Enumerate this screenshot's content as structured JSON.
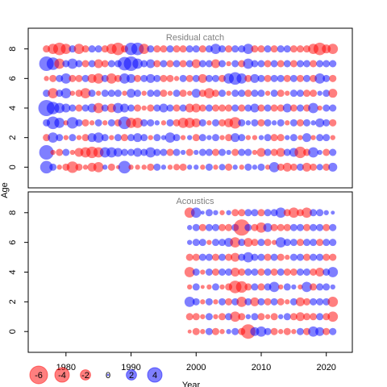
{
  "chart_data": [
    {
      "type": "bubble",
      "title": "Residual catch",
      "x": [
        1977,
        1978,
        1979,
        1980,
        1981,
        1982,
        1983,
        1984,
        1985,
        1986,
        1987,
        1988,
        1989,
        1990,
        1991,
        1992,
        1993,
        1994,
        1995,
        1996,
        1997,
        1998,
        1999,
        2000,
        2001,
        2002,
        2003,
        2004,
        2005,
        2006,
        2007,
        2008,
        2009,
        2010,
        2011,
        2012,
        2013,
        2014,
        2015,
        2016,
        2017,
        2018,
        2019,
        2020,
        2021
      ],
      "y": [
        0,
        1,
        2,
        3,
        4,
        5,
        6,
        7,
        8
      ],
      "values": [
        [
          3,
          1,
          -0.5,
          -1,
          -2.5,
          -1,
          -0.5,
          -1.5,
          -2,
          0.5,
          -1,
          -0.3,
          3,
          -0.5,
          -0.5,
          -0.5,
          -1,
          1,
          0.5,
          -0.5,
          -0.8,
          -1,
          0.5,
          0.5,
          -0.5,
          1,
          -0.5,
          0.8,
          -1,
          0.5,
          -0.5,
          1,
          0.5,
          1,
          -0.5,
          2,
          -1,
          -1.5,
          -1,
          1,
          -1.5,
          -1,
          0.8,
          -1,
          1.5
        ],
        [
          4,
          -0.5,
          -1,
          1,
          -0.5,
          -1.5,
          -2,
          -2.5,
          -2,
          2,
          2,
          1.5,
          1,
          1,
          1.5,
          1,
          2,
          1,
          1,
          -1,
          1,
          0.5,
          -1,
          0.5,
          1,
          1,
          -1,
          1,
          0.5,
          -1,
          1,
          1,
          -0.5,
          -1.5,
          1,
          -1,
          -1.5,
          1,
          1.5,
          -2.5,
          -1,
          2,
          0.5,
          -1,
          1
        ],
        [
          -1,
          2,
          1,
          -0.5,
          1,
          -0.5,
          -1,
          1.5,
          2,
          1,
          -0.5,
          1,
          -1,
          1,
          1.5,
          1,
          -0.5,
          1,
          0.5,
          2,
          1,
          -0.5,
          0.5,
          -1,
          1,
          0.5,
          1,
          -0.5,
          -1,
          1.5,
          1,
          -0.5,
          -0.5,
          0.5,
          1,
          -1,
          -1,
          0.5,
          1,
          -0.5,
          1.5,
          -0.5,
          1,
          1,
          -0.5
        ],
        [
          1,
          3,
          2,
          -0.5,
          2.5,
          1,
          -1,
          -0.5,
          1,
          -0.5,
          1,
          -1,
          3,
          -2,
          -2,
          1,
          1,
          0.5,
          -0.5,
          1,
          -1,
          -2,
          -2,
          -1.5,
          1,
          -0.5,
          1,
          -1,
          -1.5,
          -2.5,
          1,
          0.5,
          1,
          -1,
          1,
          0.5,
          1,
          -0.5,
          1,
          -1,
          1,
          0.5,
          1.5,
          1,
          -1
        ],
        [
          5,
          3,
          2,
          1.5,
          1,
          -1,
          1,
          1.5,
          -2,
          1,
          -1.5,
          2,
          1.5,
          1,
          -1,
          -0.5,
          -1,
          1,
          1.5,
          1,
          -1,
          1,
          -1.5,
          -1.5,
          -1,
          1,
          -1,
          -1,
          -1,
          1,
          -1,
          1,
          1.5,
          -1,
          1,
          -1,
          -1,
          1.5,
          -1,
          1,
          -1,
          2,
          -0.5,
          1,
          1
        ],
        [
          1,
          -2,
          1,
          2,
          -0.5,
          -1,
          -2,
          1,
          -0.5,
          1,
          1,
          1,
          -0.5,
          1.5,
          1,
          -0.5,
          1,
          1,
          -1,
          -0.5,
          1,
          -1,
          -0.5,
          1.5,
          -1,
          -2,
          -1,
          1,
          -0.5,
          1,
          1,
          -1,
          1,
          1,
          -0.5,
          1,
          -1,
          -0.5,
          1,
          1,
          -1,
          -1,
          0.5,
          1,
          -1.5
        ],
        [
          -0.5,
          -1,
          1,
          2,
          -1,
          -1,
          1,
          -1.5,
          -2,
          1,
          -2,
          -1,
          2,
          1.5,
          -1,
          1,
          1.5,
          1,
          -1,
          -1,
          -0.5,
          1,
          -1,
          1,
          -1.5,
          1,
          1,
          -1,
          2,
          3,
          2,
          -1,
          1.5,
          1,
          -1,
          1,
          1,
          -1,
          1,
          -1,
          1,
          -1,
          2,
          1,
          -1
        ],
        [
          4,
          3,
          -2,
          1,
          2,
          1,
          -1,
          1,
          -1.5,
          -1,
          1,
          1,
          3.5,
          4,
          2,
          1,
          1.5,
          -1,
          1,
          -1,
          1,
          -1,
          1,
          -1.5,
          1,
          1,
          -1.5,
          1,
          -0.5,
          1,
          -1,
          2,
          1,
          1,
          -1,
          1,
          -1,
          1,
          -1,
          1,
          1,
          -1,
          1,
          1,
          1
        ],
        [
          -1,
          -2,
          -3,
          -2,
          1,
          -2,
          -1,
          1,
          1,
          -1,
          -2,
          -3,
          -1,
          3,
          3,
          -2,
          1,
          -1,
          -1,
          1,
          -1,
          -1,
          1,
          1,
          -1,
          1,
          2,
          1,
          -1,
          1,
          1,
          2,
          -1,
          -1,
          1,
          -1,
          1,
          1,
          -1,
          -1,
          -1,
          -2,
          -3,
          -1.5,
          -2
        ]
      ],
      "xlim": [
        1974.2,
        2024
      ],
      "ylim": [
        -1.4,
        9.4
      ],
      "yticks": [
        0,
        2,
        4,
        6,
        8
      ]
    },
    {
      "type": "bubble",
      "title": "Acoustics",
      "x": [
        1999,
        2000,
        2001,
        2002,
        2003,
        2004,
        2005,
        2006,
        2007,
        2008,
        2009,
        2010,
        2011,
        2012,
        2013,
        2014,
        2015,
        2016,
        2017,
        2018,
        2019,
        2020,
        2021
      ],
      "y": [
        0,
        1,
        2,
        3,
        4,
        5,
        6,
        7,
        8
      ],
      "values": [
        [
          -0.3,
          -1,
          -0.5,
          1,
          -1,
          -0.5,
          0.5,
          1,
          -1,
          -4,
          1.5,
          2,
          1,
          -1,
          -0.5,
          -1,
          -0.5,
          1,
          -1,
          2,
          1.5,
          -1,
          1
        ],
        [
          -1,
          -1,
          -0.5,
          1,
          -0.5,
          -1,
          1,
          -2,
          -1,
          0.5,
          1,
          -1,
          -0.5,
          -1,
          0.5,
          1,
          -1,
          -1.5,
          -1,
          -1,
          1,
          -1,
          -2
        ],
        [
          2,
          1,
          -0.5,
          1,
          -0.5,
          1,
          -1,
          1,
          -2,
          1,
          -1.5,
          1,
          -1,
          1,
          -1,
          -0.5,
          1,
          -1.5,
          -1,
          1,
          1,
          1,
          -2
        ],
        [
          -0.5,
          1,
          -0.3,
          -0.5,
          1,
          -0.5,
          -1,
          -3,
          -2.5,
          -1,
          1,
          -1,
          1,
          2,
          -0.5,
          1,
          0.5,
          -0.5,
          2,
          -1,
          1,
          1,
          0.5
        ],
        [
          -2,
          1,
          -0.5,
          1,
          -1,
          1,
          1,
          -1.5,
          -1,
          1,
          1,
          -1,
          1,
          -1,
          1,
          -1,
          -1,
          1,
          1,
          -1,
          -1.5,
          1,
          2
        ],
        [
          -1,
          -1,
          1,
          1,
          -1,
          1,
          -1,
          -1.5,
          1,
          2,
          1,
          1,
          -1,
          1,
          -1,
          -0.5,
          1,
          1,
          -1,
          1,
          1,
          -1,
          -1
        ],
        [
          0.5,
          1,
          1,
          -0.5,
          1,
          1,
          1.5,
          -2,
          1,
          -1.5,
          -1,
          1,
          -1,
          -0.5,
          2,
          1,
          1,
          -1,
          1,
          1,
          -1,
          1,
          1
        ],
        [
          0.5,
          1,
          -1,
          1,
          1,
          -1,
          -1,
          1,
          -5,
          1,
          -1,
          -2,
          1.5,
          -1,
          -1,
          -1,
          1,
          1,
          -1,
          1,
          1,
          -1,
          1
        ],
        [
          -2,
          2,
          0.3,
          1,
          0.5,
          -0.5,
          0.5,
          -1,
          -1,
          1,
          1,
          -1,
          1,
          1,
          2,
          -1,
          -2,
          -1,
          -2,
          1,
          1,
          0.5,
          0.3
        ]
      ],
      "xlim": [
        1974.2,
        2024
      ],
      "ylim": [
        -1.4,
        9.4
      ],
      "xticks": [
        1980,
        1990,
        2000,
        2010,
        2020
      ],
      "yticks": [
        0,
        2,
        4,
        6,
        8
      ]
    }
  ],
  "legend": {
    "values": [
      -6,
      -4,
      -2,
      0,
      2,
      4
    ]
  },
  "xlabel": "Year",
  "ylabel": "Age"
}
